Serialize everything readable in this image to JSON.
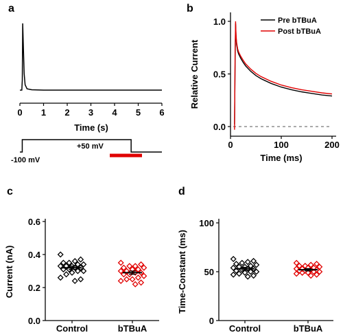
{
  "panels": {
    "a": {
      "label": "a"
    },
    "b": {
      "label": "b"
    },
    "c": {
      "label": "c"
    },
    "d": {
      "label": "d"
    }
  },
  "protocol": {
    "holding_label": "-100 mV",
    "step_label": "+50 mV",
    "holding_mV": -100,
    "step_mV": 50,
    "step_start_s": 0.1,
    "step_end_s": 4.7,
    "bar_color": "#e00000"
  },
  "chart_data": [
    {
      "panel": "a",
      "type": "line",
      "title": "",
      "xlabel": "Time (s)",
      "ylabel": "",
      "xlim": [
        0,
        6
      ],
      "xticks": [
        "0",
        "1",
        "2",
        "3",
        "4",
        "5",
        "6"
      ],
      "grid": false,
      "series": [
        {
          "color": "#000000",
          "x": [
            0,
            0.08,
            0.1,
            0.12,
            0.15,
            0.18,
            0.22,
            0.3,
            0.5,
            1,
            6
          ],
          "y": [
            0,
            0,
            0.15,
            1.0,
            0.6,
            0.25,
            0.08,
            0.02,
            0.005,
            0,
            0
          ]
        }
      ]
    },
    {
      "panel": "b",
      "type": "line",
      "title": "",
      "xlabel": "Time (ms)",
      "ylabel": "Relative Current",
      "xlim": [
        0,
        200
      ],
      "ylim": [
        -0.05,
        1.0
      ],
      "xticks": [
        "0",
        "100",
        "200"
      ],
      "yticks": [
        "0.0",
        "0.5",
        "1.0"
      ],
      "zero_line": true,
      "legend_position": "top-right",
      "grid": false,
      "series": [
        {
          "name": "Pre bTBuA",
          "color": "#000000",
          "x": [
            8,
            9,
            10,
            11,
            12,
            14,
            16,
            18,
            20,
            25,
            30,
            40,
            50,
            60,
            80,
            100,
            120,
            140,
            160,
            180,
            200
          ],
          "y": [
            0.02,
            0.6,
            0.98,
            0.85,
            0.78,
            0.72,
            0.69,
            0.67,
            0.65,
            0.61,
            0.575,
            0.525,
            0.485,
            0.455,
            0.41,
            0.375,
            0.35,
            0.33,
            0.315,
            0.3,
            0.29
          ]
        },
        {
          "name": "Post bTBuA",
          "color": "#e00000",
          "x": [
            8,
            9,
            10,
            11,
            12,
            14,
            16,
            18,
            20,
            25,
            30,
            40,
            50,
            60,
            80,
            100,
            120,
            140,
            160,
            180,
            200
          ],
          "y": [
            -0.03,
            0.7,
            1.0,
            0.87,
            0.8,
            0.74,
            0.71,
            0.69,
            0.67,
            0.63,
            0.595,
            0.545,
            0.505,
            0.475,
            0.43,
            0.395,
            0.37,
            0.35,
            0.335,
            0.32,
            0.31
          ]
        }
      ]
    },
    {
      "panel": "c",
      "type": "scatter",
      "title": "",
      "xlabel": "",
      "ylabel": "Current (nA)",
      "ylim": [
        0,
        0.6
      ],
      "yticks": [
        "0.0",
        "0.2",
        "0.4",
        "0.6"
      ],
      "categories": [
        "Control",
        "bTBuA"
      ],
      "grid": false,
      "series": [
        {
          "category": "Control",
          "color": "#000000",
          "mean": 0.32,
          "error": 0.01,
          "values": [
            0.4,
            0.37,
            0.36,
            0.35,
            0.35,
            0.34,
            0.34,
            0.33,
            0.33,
            0.33,
            0.32,
            0.32,
            0.31,
            0.31,
            0.3,
            0.3,
            0.29,
            0.28,
            0.26,
            0.25,
            0.24
          ]
        },
        {
          "category": "bTBuA",
          "color": "#e00000",
          "mean": 0.29,
          "error": 0.01,
          "values": [
            0.35,
            0.34,
            0.33,
            0.33,
            0.32,
            0.32,
            0.31,
            0.31,
            0.3,
            0.3,
            0.29,
            0.29,
            0.28,
            0.28,
            0.27,
            0.26,
            0.25,
            0.25,
            0.24,
            0.23,
            0.22
          ]
        }
      ]
    },
    {
      "panel": "d",
      "type": "scatter",
      "title": "",
      "xlabel": "",
      "ylabel": "Time-Constant (ms)",
      "ylim": [
        0,
        100
      ],
      "yticks": [
        "0",
        "50",
        "100"
      ],
      "categories": [
        "Control",
        "bTBuA"
      ],
      "grid": false,
      "series": [
        {
          "category": "Control",
          "color": "#000000",
          "mean": 53,
          "error": 1.5,
          "values": [
            63,
            61,
            60,
            59,
            58,
            57,
            56,
            55,
            55,
            54,
            53,
            53,
            52,
            51,
            50,
            50,
            49,
            48,
            47,
            46,
            45
          ]
        },
        {
          "category": "bTBuA",
          "color": "#e00000",
          "mean": 52,
          "error": 1.2,
          "values": [
            59,
            58,
            57,
            56,
            56,
            55,
            54,
            54,
            53,
            53,
            52,
            52,
            51,
            51,
            50,
            50,
            49,
            49,
            48,
            47,
            46
          ]
        }
      ]
    }
  ]
}
